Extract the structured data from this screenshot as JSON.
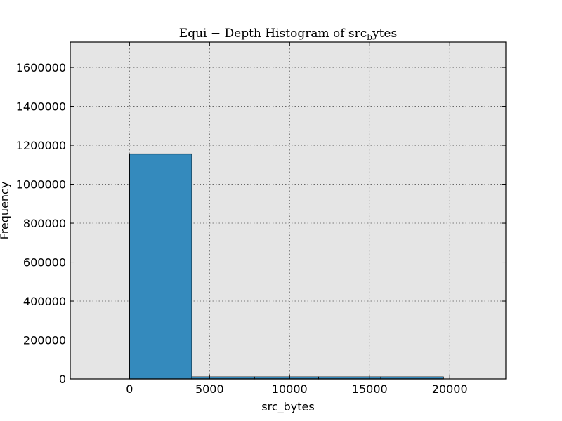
{
  "chart_data": {
    "type": "bar",
    "title": "Equi − Depth Histogram of src",
    "title_subscript": "b",
    "title_suffix": "ytes",
    "xlabel": "src_bytes",
    "ylabel": "Frequency",
    "xlim": [
      -3700,
      23500
    ],
    "ylim": [
      0,
      1730000
    ],
    "xticks": [
      0,
      5000,
      10000,
      15000,
      20000
    ],
    "xtick_labels": [
      "0",
      "5000",
      "10000",
      "15000",
      "20000"
    ],
    "yticks": [
      0,
      200000,
      400000,
      600000,
      800000,
      1000000,
      1200000,
      1400000,
      1600000
    ],
    "ytick_labels": [
      "0",
      "200000",
      "400000",
      "600000",
      "800000",
      "1000000",
      "1200000",
      "1400000",
      "1600000"
    ],
    "bins": [
      {
        "x0": 0,
        "x1": 3900,
        "value": 1155000
      },
      {
        "x0": 3900,
        "x1": 7800,
        "value": 10000
      },
      {
        "x0": 7800,
        "x1": 11800,
        "value": 10000
      },
      {
        "x0": 11800,
        "x1": 15700,
        "value": 10000
      },
      {
        "x0": 15700,
        "x1": 19600,
        "value": 10000
      }
    ],
    "grid": true,
    "bar_color": "#348abd",
    "background_color": "#e5e5e5"
  }
}
